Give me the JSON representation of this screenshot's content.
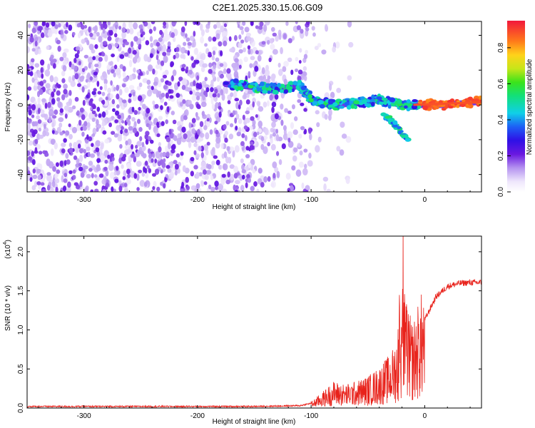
{
  "title": "C2E1.2025.330.15.06.G09",
  "colors": {
    "snr_line": "#e8221b",
    "spectro_background": "#ffffff",
    "points_light": "#d8c8f5",
    "points_dark": "#6a18e0"
  },
  "chart_data": [
    {
      "type": "heatmap",
      "name": "spectrogram",
      "xlabel": "Height of straight line (km)",
      "ylabel": "Frequency (Hz)",
      "xlim": [
        -350,
        50
      ],
      "ylim": [
        -50,
        48
      ],
      "xticks": [
        "-300",
        "-200",
        "-100",
        "0"
      ],
      "yticks": [
        "40",
        "20",
        "0",
        "-20",
        "-40"
      ],
      "xtick_values": [
        -300,
        -200,
        -100,
        0
      ],
      "ytick_values": [
        40,
        20,
        0,
        -20,
        -40
      ],
      "colorbar": {
        "label": "Normalized spectral amplitude",
        "range": [
          0,
          0.95
        ],
        "ticks": [
          "0.0",
          "0.2",
          "0.4",
          "0.6",
          "0.8"
        ],
        "tick_values": [
          0.0,
          0.2,
          0.4,
          0.6,
          0.8
        ]
      },
      "features": [
        {
          "description": "noise scatter",
          "x_range": [
            -350,
            -100
          ],
          "freq_range": [
            -50,
            48
          ],
          "amplitude": 0.1
        },
        {
          "description": "main trace",
          "points": [
            [
              -175,
              12
            ],
            [
              -145,
              10
            ],
            [
              -130,
              9
            ],
            [
              -110,
              11
            ],
            [
              -100,
              3
            ],
            [
              -80,
              0
            ],
            [
              -60,
              1
            ],
            [
              -40,
              3
            ],
            [
              -20,
              0
            ],
            [
              0,
              0
            ],
            [
              20,
              0
            ],
            [
              50,
              2
            ]
          ]
        },
        {
          "description": "lower branch",
          "points": [
            [
              -35,
              -6
            ],
            [
              -25,
              -12
            ],
            [
              -15,
              -20
            ]
          ]
        }
      ]
    },
    {
      "type": "line",
      "name": "snr",
      "xlabel": "Height of straight line (km)",
      "ylabel": "SNR (10 * v/v)",
      "scale_label": "(x10",
      "scale_exp": "4",
      "scale_close": ")",
      "xlim": [
        -350,
        50
      ],
      "ylim": [
        0,
        2.2
      ],
      "xticks": [
        "-300",
        "-200",
        "-100",
        "0"
      ],
      "yticks": [
        "0.0",
        "0.5",
        "1.0",
        "1.5",
        "2.0"
      ],
      "xtick_values": [
        -300,
        -200,
        -100,
        0
      ],
      "ytick_values": [
        0.0,
        0.5,
        1.0,
        1.5,
        2.0
      ],
      "series": [
        {
          "name": "SNR",
          "x": [
            -350,
            -300,
            -250,
            -200,
            -150,
            -110,
            -100,
            -90,
            -80,
            -70,
            -60,
            -50,
            -40,
            -35,
            -30,
            -25,
            -22,
            -20,
            -18,
            -15,
            -10,
            -5,
            0,
            5,
            10,
            20,
            30,
            40,
            50
          ],
          "y": [
            0.02,
            0.02,
            0.02,
            0.02,
            0.02,
            0.03,
            0.06,
            0.15,
            0.25,
            0.22,
            0.25,
            0.3,
            0.38,
            0.45,
            0.5,
            0.65,
            1.0,
            1.3,
            1.1,
            0.9,
            0.8,
            1.0,
            1.15,
            1.3,
            1.45,
            1.58,
            1.62,
            1.63,
            1.63
          ]
        }
      ]
    }
  ]
}
